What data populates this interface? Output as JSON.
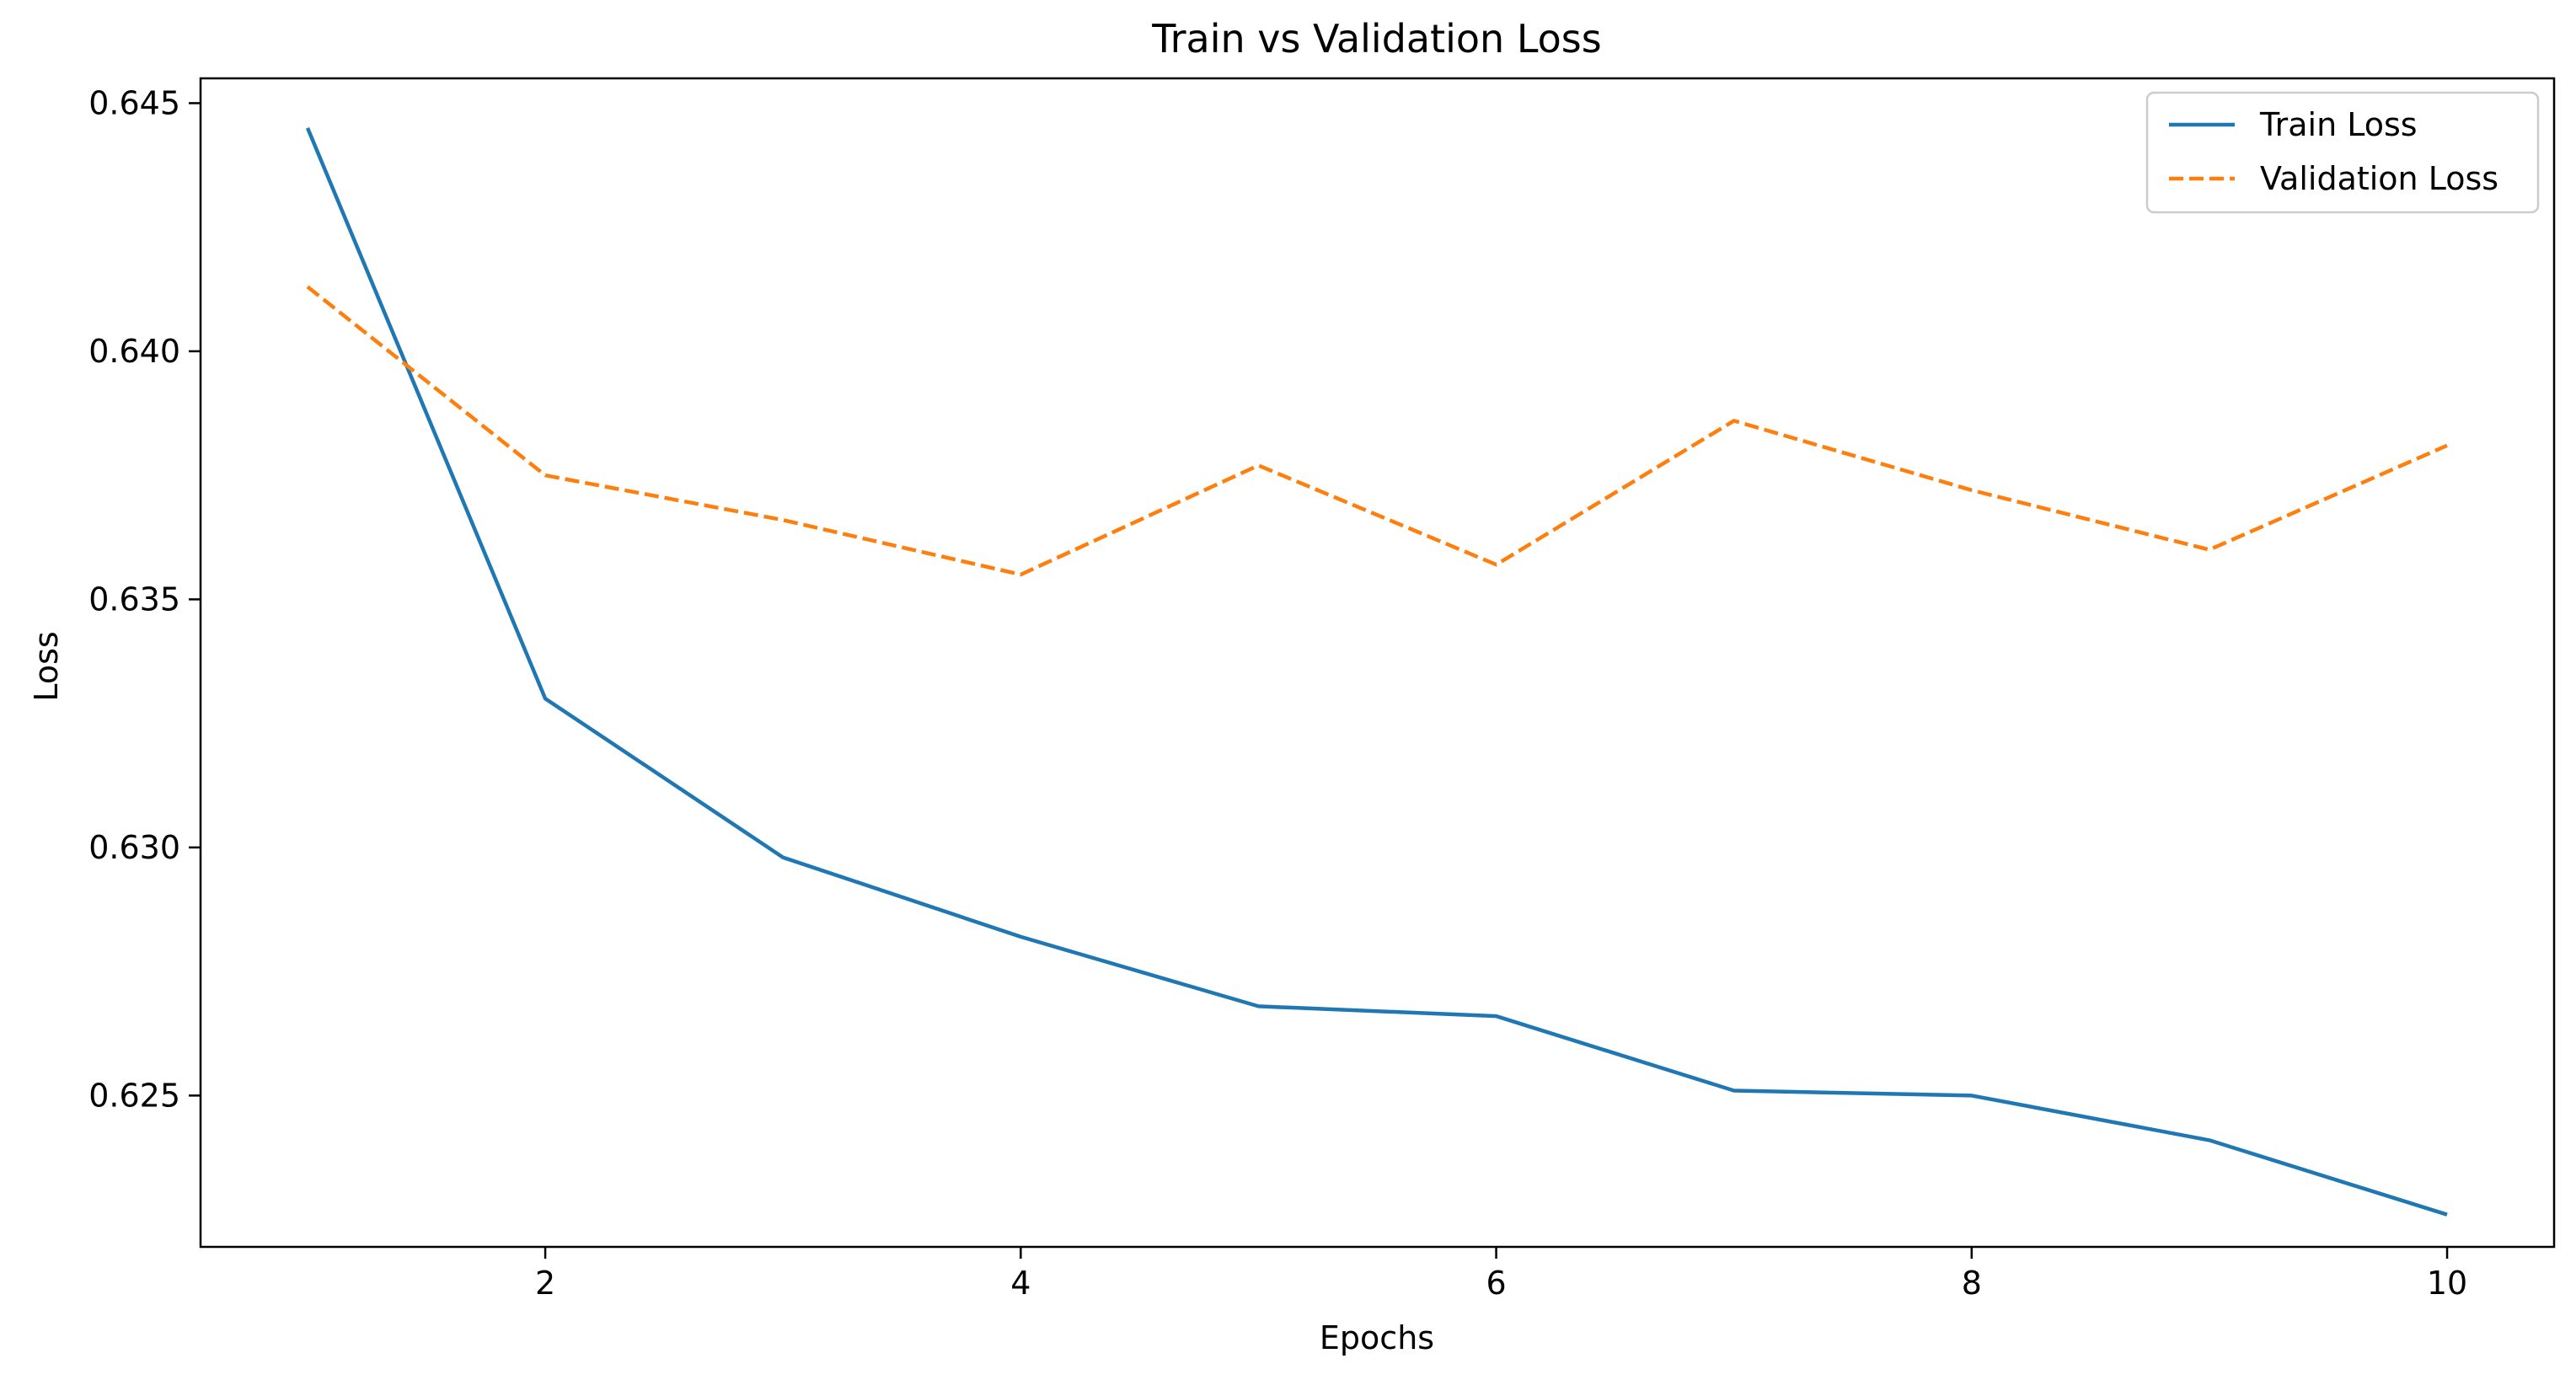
{
  "chart_data": {
    "type": "line",
    "title": "Train vs Validation Loss",
    "xlabel": "Epochs",
    "ylabel": "Loss",
    "x": [
      1,
      2,
      3,
      4,
      5,
      6,
      7,
      8,
      9,
      10
    ],
    "xlim": [
      0.55,
      10.45
    ],
    "ylim": [
      0.62195,
      0.6455
    ],
    "xticks": [
      2,
      4,
      6,
      8,
      10
    ],
    "xtick_labels": [
      "2",
      "4",
      "6",
      "8",
      "10"
    ],
    "yticks": [
      0.625,
      0.63,
      0.635,
      0.64,
      0.645
    ],
    "ytick_labels": [
      "0.625",
      "0.630",
      "0.635",
      "0.640",
      "0.645"
    ],
    "grid": false,
    "legend_position": "top-right",
    "series": [
      {
        "name": "Train Loss",
        "color": "#1f77b4",
        "style": "solid",
        "values": [
          0.6445,
          0.633,
          0.6298,
          0.6282,
          0.6268,
          0.6266,
          0.6251,
          0.625,
          0.6241,
          0.6226
        ]
      },
      {
        "name": "Validation Loss",
        "color": "#ff7f0e",
        "style": "dashed",
        "values": [
          0.6413,
          0.6375,
          0.6366,
          0.6355,
          0.6377,
          0.6357,
          0.6386,
          0.6372,
          0.636,
          0.6381
        ]
      }
    ]
  }
}
